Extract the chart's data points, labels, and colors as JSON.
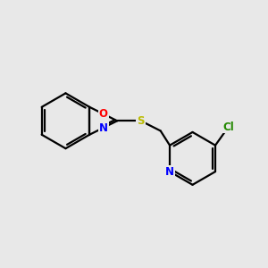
{
  "background_color": "#e8e8e8",
  "bond_color": "#000000",
  "atom_colors": {
    "O": "#ff0000",
    "N": "#0000ff",
    "S": "#bbbb00",
    "Cl": "#228800",
    "C": "#000000"
  },
  "line_width": 1.6,
  "font_size": 8.5,
  "figsize": [
    3.0,
    3.0
  ],
  "dpi": 100,
  "xlim": [
    0,
    10
  ],
  "ylim": [
    0,
    10
  ]
}
